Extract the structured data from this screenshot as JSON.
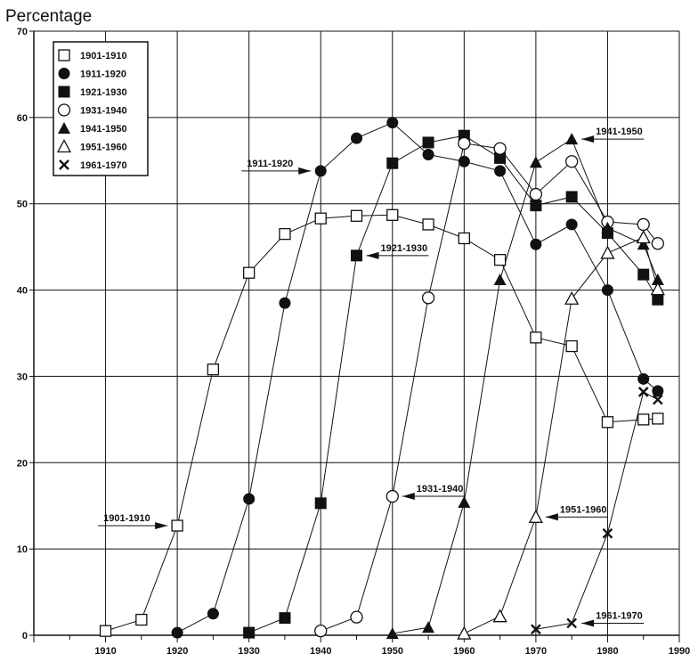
{
  "chart_data": {
    "type": "line",
    "ylabel": "Percentage",
    "xlabel": "",
    "xlim": [
      1900,
      1990
    ],
    "ylim": [
      0,
      70
    ],
    "xticks": [
      1910,
      1920,
      1930,
      1940,
      1950,
      1960,
      1970,
      1980,
      1990
    ],
    "yticks": [
      0,
      10,
      20,
      30,
      40,
      50,
      60,
      70
    ],
    "grid": true,
    "legend_position": "top-left",
    "series": [
      {
        "name": "1901-1910",
        "marker": "square-open",
        "x": [
          1910,
          1915,
          1920,
          1925,
          1930,
          1935,
          1940,
          1945,
          1950,
          1955,
          1960,
          1965,
          1970,
          1975,
          1980,
          1985,
          1987
        ],
        "y": [
          0.5,
          1.8,
          12.7,
          30.8,
          42.0,
          46.5,
          48.3,
          48.6,
          48.7,
          47.6,
          46.0,
          43.5,
          34.5,
          33.5,
          24.7,
          25.0,
          25.1
        ]
      },
      {
        "name": "1911-1920",
        "marker": "circle-filled",
        "x": [
          1920,
          1925,
          1930,
          1935,
          1940,
          1945,
          1950,
          1955,
          1960,
          1965,
          1970,
          1975,
          1980,
          1985,
          1987
        ],
        "y": [
          0.3,
          2.5,
          15.8,
          38.5,
          53.8,
          57.6,
          59.4,
          55.7,
          54.9,
          53.8,
          45.3,
          47.6,
          40.0,
          29.7,
          28.3
        ]
      },
      {
        "name": "1921-1930",
        "marker": "square-filled",
        "x": [
          1930,
          1935,
          1940,
          1945,
          1950,
          1955,
          1960,
          1965,
          1970,
          1975,
          1980,
          1985,
          1987
        ],
        "y": [
          0.3,
          2.0,
          15.3,
          44.0,
          54.7,
          57.1,
          57.9,
          55.3,
          49.8,
          50.8,
          46.6,
          41.8,
          38.9
        ]
      },
      {
        "name": "1931-1940",
        "marker": "circle-open",
        "x": [
          1940,
          1945,
          1950,
          1955,
          1960,
          1965,
          1970,
          1975,
          1980,
          1985,
          1987
        ],
        "y": [
          0.5,
          2.1,
          16.1,
          39.1,
          57.0,
          56.4,
          51.1,
          54.9,
          47.9,
          47.6,
          45.4
        ]
      },
      {
        "name": "1941-1950",
        "marker": "triangle-filled",
        "x": [
          1950,
          1955,
          1960,
          1965,
          1970,
          1975,
          1980,
          1985,
          1987
        ],
        "y": [
          0.2,
          0.9,
          15.4,
          41.2,
          54.8,
          57.5,
          47.2,
          45.3,
          41.2
        ]
      },
      {
        "name": "1951-1960",
        "marker": "triangle-open",
        "x": [
          1960,
          1965,
          1970,
          1975,
          1980,
          1985,
          1987
        ],
        "y": [
          0.2,
          2.2,
          13.7,
          39.0,
          44.3,
          46.1,
          40.1
        ]
      },
      {
        "name": "1961-1970",
        "marker": "x",
        "x": [
          1970,
          1975,
          1980,
          1985,
          1987
        ],
        "y": [
          0.7,
          1.4,
          11.8,
          28.2,
          27.3
        ]
      }
    ],
    "annotations": [
      {
        "text": "1901-1910",
        "target_series": "1901-1910",
        "x": 1920,
        "y": 12.7,
        "side": "left"
      },
      {
        "text": "1911-1920",
        "target_series": "1911-1920",
        "x": 1940,
        "y": 53.8,
        "side": "left"
      },
      {
        "text": "1921-1930",
        "target_series": "1921-1930",
        "x": 1945,
        "y": 44.0,
        "side": "right"
      },
      {
        "text": "1931-1940",
        "target_series": "1931-1940",
        "x": 1950,
        "y": 16.1,
        "side": "right"
      },
      {
        "text": "1941-1950",
        "target_series": "1941-1950",
        "x": 1975,
        "y": 57.5,
        "side": "right"
      },
      {
        "text": "1951-1960",
        "target_series": "1951-1960",
        "x": 1970,
        "y": 13.7,
        "side": "right"
      },
      {
        "text": "1961-1970",
        "target_series": "1961-1970",
        "x": 1975,
        "y": 1.4,
        "side": "right"
      }
    ]
  }
}
